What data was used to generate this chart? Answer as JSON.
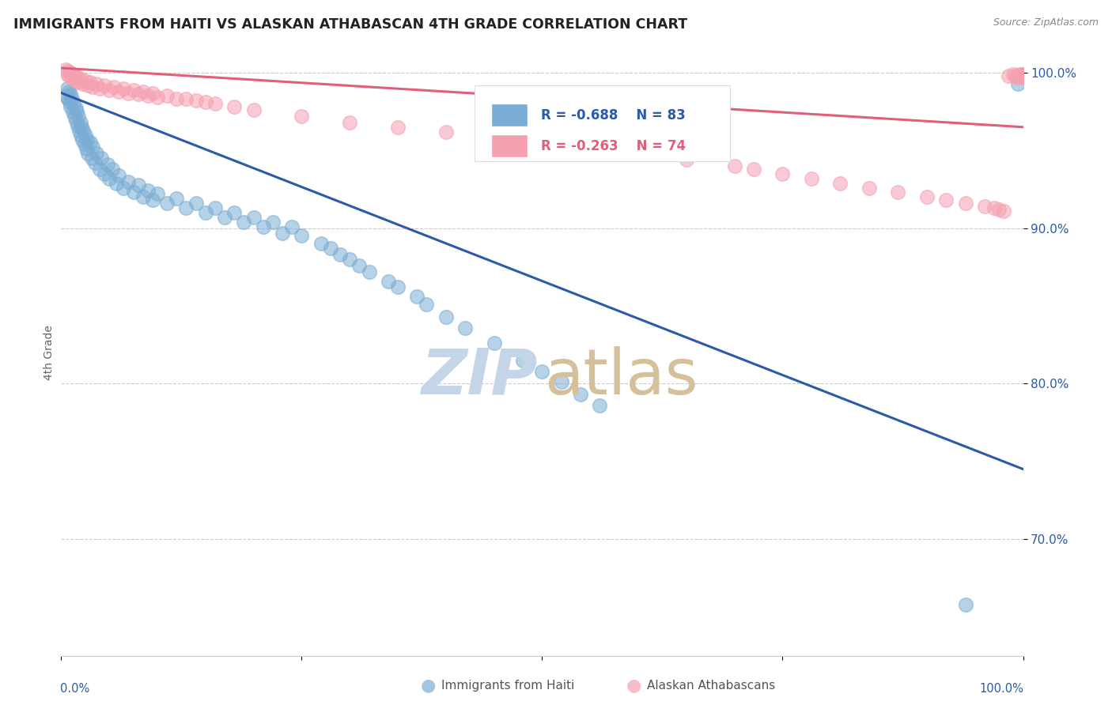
{
  "title": "IMMIGRANTS FROM HAITI VS ALASKAN ATHABASCAN 4TH GRADE CORRELATION CHART",
  "source": "Source: ZipAtlas.com",
  "ylabel": "4th Grade",
  "xlim": [
    0.0,
    1.0
  ],
  "ylim": [
    0.625,
    1.015
  ],
  "yticks": [
    0.7,
    0.8,
    0.9,
    1.0
  ],
  "ytick_labels": [
    "70.0%",
    "80.0%",
    "90.0%",
    "100.0%"
  ],
  "blue_scatter_color": "#7BADD4",
  "pink_scatter_color": "#F5A0B0",
  "blue_line_color": "#2B5BA8",
  "pink_line_color": "#E0607A",
  "legend_blue_label": "Immigrants from Haiti",
  "legend_pink_label": "Alaskan Athabascans",
  "R_blue": -0.688,
  "N_blue": 83,
  "R_pink": -0.263,
  "N_pink": 74,
  "blue_line_x0": 0.0,
  "blue_line_y0": 0.987,
  "blue_line_x1": 1.0,
  "blue_line_y1": 0.745,
  "pink_line_x0": 0.0,
  "pink_line_y0": 1.003,
  "pink_line_x1": 1.0,
  "pink_line_y1": 0.965,
  "watermark_zip_color": "#C5D5E8",
  "watermark_atlas_color": "#D4C09A",
  "blue_x": [
    0.005,
    0.006,
    0.007,
    0.008,
    0.009,
    0.01,
    0.01,
    0.011,
    0.012,
    0.013,
    0.014,
    0.015,
    0.015,
    0.016,
    0.017,
    0.018,
    0.019,
    0.02,
    0.02,
    0.021,
    0.022,
    0.023,
    0.024,
    0.025,
    0.026,
    0.027,
    0.028,
    0.03,
    0.032,
    0.033,
    0.035,
    0.037,
    0.04,
    0.042,
    0.045,
    0.048,
    0.05,
    0.053,
    0.057,
    0.06,
    0.065,
    0.07,
    0.075,
    0.08,
    0.085,
    0.09,
    0.095,
    0.1,
    0.11,
    0.12,
    0.13,
    0.14,
    0.15,
    0.16,
    0.17,
    0.18,
    0.19,
    0.2,
    0.21,
    0.22,
    0.23,
    0.24,
    0.25,
    0.27,
    0.28,
    0.29,
    0.3,
    0.31,
    0.32,
    0.34,
    0.35,
    0.37,
    0.38,
    0.4,
    0.42,
    0.45,
    0.48,
    0.5,
    0.52,
    0.54,
    0.56,
    0.94,
    0.995
  ],
  "blue_y": [
    0.985,
    0.99,
    0.983,
    0.988,
    0.981,
    0.986,
    0.978,
    0.983,
    0.975,
    0.98,
    0.972,
    0.977,
    0.969,
    0.975,
    0.966,
    0.972,
    0.963,
    0.968,
    0.96,
    0.965,
    0.957,
    0.963,
    0.954,
    0.96,
    0.951,
    0.957,
    0.948,
    0.955,
    0.945,
    0.952,
    0.942,
    0.948,
    0.938,
    0.945,
    0.935,
    0.941,
    0.932,
    0.938,
    0.929,
    0.934,
    0.926,
    0.93,
    0.923,
    0.928,
    0.92,
    0.924,
    0.918,
    0.922,
    0.916,
    0.919,
    0.913,
    0.916,
    0.91,
    0.913,
    0.907,
    0.91,
    0.904,
    0.907,
    0.901,
    0.904,
    0.897,
    0.901,
    0.895,
    0.89,
    0.887,
    0.883,
    0.88,
    0.876,
    0.872,
    0.866,
    0.862,
    0.856,
    0.851,
    0.843,
    0.836,
    0.826,
    0.815,
    0.808,
    0.801,
    0.793,
    0.786,
    0.658,
    0.993
  ],
  "pink_x": [
    0.005,
    0.006,
    0.007,
    0.008,
    0.01,
    0.011,
    0.012,
    0.013,
    0.015,
    0.016,
    0.017,
    0.018,
    0.02,
    0.022,
    0.025,
    0.028,
    0.03,
    0.033,
    0.037,
    0.04,
    0.045,
    0.05,
    0.055,
    0.06,
    0.065,
    0.07,
    0.075,
    0.08,
    0.085,
    0.09,
    0.095,
    0.1,
    0.11,
    0.12,
    0.13,
    0.14,
    0.15,
    0.16,
    0.18,
    0.2,
    0.25,
    0.3,
    0.35,
    0.4,
    0.45,
    0.5,
    0.55,
    0.6,
    0.65,
    0.7,
    0.72,
    0.75,
    0.78,
    0.81,
    0.84,
    0.87,
    0.9,
    0.92,
    0.94,
    0.96,
    0.97,
    0.975,
    0.98,
    0.985,
    0.99,
    0.992,
    0.994,
    0.996,
    0.997,
    0.998,
    0.999,
    0.9993,
    0.9996,
    0.9999
  ],
  "pink_y": [
    1.002,
    0.999,
    1.001,
    0.998,
    1.0,
    0.997,
    0.999,
    0.996,
    0.998,
    0.995,
    0.997,
    0.994,
    0.996,
    0.993,
    0.995,
    0.992,
    0.994,
    0.991,
    0.993,
    0.99,
    0.992,
    0.989,
    0.991,
    0.988,
    0.99,
    0.987,
    0.989,
    0.986,
    0.988,
    0.985,
    0.987,
    0.984,
    0.985,
    0.983,
    0.983,
    0.982,
    0.981,
    0.98,
    0.978,
    0.976,
    0.972,
    0.968,
    0.965,
    0.962,
    0.958,
    0.955,
    0.951,
    0.948,
    0.944,
    0.94,
    0.938,
    0.935,
    0.932,
    0.929,
    0.926,
    0.923,
    0.92,
    0.918,
    0.916,
    0.914,
    0.913,
    0.912,
    0.911,
    0.998,
    0.999,
    0.998,
    0.997,
    0.999,
    0.998,
    0.997,
    0.999,
    0.998,
    0.999,
    0.998
  ]
}
